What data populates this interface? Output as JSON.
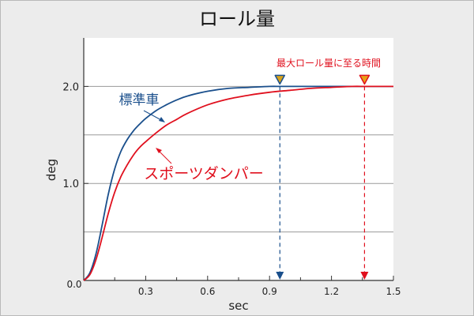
{
  "chart_data": {
    "type": "line",
    "title": "ロール量",
    "xlabel": "sec",
    "ylabel": "deg",
    "xlim": [
      0,
      1.5
    ],
    "ylim": [
      0,
      2.5
    ],
    "x_ticks": [
      "0.3",
      "0.6",
      "0.9",
      "1.2",
      "1.5"
    ],
    "x_tick_values": [
      0.3,
      0.6,
      0.9,
      1.2,
      1.5
    ],
    "x_minor_ticks": [
      0.15,
      0.45,
      0.75,
      1.05,
      1.35
    ],
    "origin_label": "0.0",
    "y_ticks": [
      "1.0",
      "2.0"
    ],
    "y_tick_values": [
      1.0,
      2.0
    ],
    "y_gridlines": [
      0.5,
      1.0,
      1.5,
      2.0
    ],
    "grid": true,
    "series": [
      {
        "name": "標準車",
        "color": "#1a4f8c",
        "x": [
          0,
          0.03,
          0.06,
          0.09,
          0.12,
          0.15,
          0.18,
          0.21,
          0.24,
          0.27,
          0.3,
          0.35,
          0.4,
          0.45,
          0.5,
          0.6,
          0.7,
          0.8,
          0.9,
          0.95,
          1.0,
          1.1,
          1.2,
          1.3,
          1.4,
          1.5
        ],
        "y": [
          0,
          0.08,
          0.28,
          0.58,
          0.9,
          1.15,
          1.33,
          1.45,
          1.54,
          1.61,
          1.67,
          1.75,
          1.81,
          1.86,
          1.9,
          1.95,
          1.98,
          1.99,
          2.0,
          2.0,
          2.0,
          2.0,
          2.0,
          2.0,
          2.0,
          2.0
        ]
      },
      {
        "name": "スポーツダンパー",
        "color": "#e0101e",
        "x": [
          0,
          0.03,
          0.06,
          0.09,
          0.12,
          0.15,
          0.18,
          0.21,
          0.24,
          0.27,
          0.3,
          0.35,
          0.4,
          0.45,
          0.5,
          0.6,
          0.7,
          0.8,
          0.9,
          1.0,
          1.1,
          1.2,
          1.3,
          1.36,
          1.4,
          1.5
        ],
        "y": [
          0,
          0.06,
          0.22,
          0.45,
          0.7,
          0.91,
          1.07,
          1.19,
          1.29,
          1.37,
          1.43,
          1.52,
          1.6,
          1.66,
          1.72,
          1.81,
          1.87,
          1.91,
          1.94,
          1.96,
          1.98,
          1.99,
          2.0,
          2.0,
          2.0,
          2.0
        ]
      }
    ],
    "markers": {
      "label": "最大ロール量に至る時間",
      "label_color": "#e0101e",
      "items": [
        {
          "x": 0.95,
          "y": 2.0,
          "fill": "#d8a21b",
          "stroke": "#1a4f8c",
          "line_color": "#1a4f8c"
        },
        {
          "x": 1.36,
          "y": 2.0,
          "fill": "#e8a016",
          "stroke": "#e0101e",
          "line_color": "#e0101e"
        }
      ]
    }
  }
}
